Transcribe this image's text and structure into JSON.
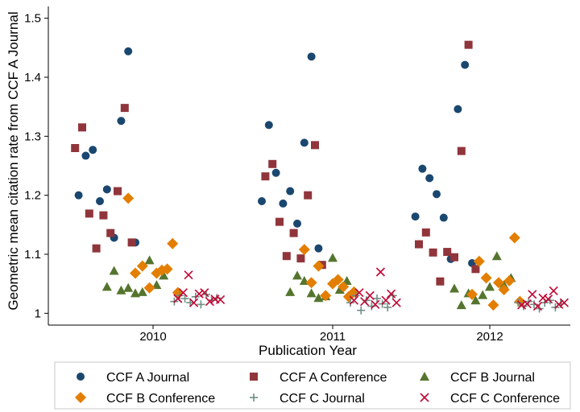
{
  "chart_data": {
    "type": "scatter",
    "title": "",
    "xlabel": "Publication Year",
    "ylabel": "Geometric mean citation rate from CCF A Journal",
    "x_categories": [
      "2010",
      "2011",
      "2012"
    ],
    "ylim": [
      0.98,
      1.52
    ],
    "yticks": [
      "1",
      "1.1",
      "1.2",
      "1.3",
      "1.4",
      "1.5"
    ],
    "grid": false,
    "legend_position": "bottom",
    "colors": {
      "ccf_a_journal": "#1a476f",
      "ccf_a_conference": "#90353b",
      "ccf_b_journal": "#55752f",
      "ccf_b_conference": "#e37e00",
      "ccf_c_journal": "#6e8e84",
      "ccf_c_conference": "#c10534"
    },
    "series": [
      {
        "name": "CCF A Journal",
        "key": "ccf_a_journal",
        "marker": "circle",
        "points": [
          {
            "year": "2010",
            "offset": -0.42,
            "y": 1.2
          },
          {
            "year": "2010",
            "offset": -0.38,
            "y": 1.267
          },
          {
            "year": "2010",
            "offset": -0.34,
            "y": 1.277
          },
          {
            "year": "2010",
            "offset": -0.3,
            "y": 1.19
          },
          {
            "year": "2010",
            "offset": -0.26,
            "y": 1.21
          },
          {
            "year": "2010",
            "offset": -0.22,
            "y": 1.128
          },
          {
            "year": "2010",
            "offset": -0.18,
            "y": 1.326
          },
          {
            "year": "2010",
            "offset": -0.14,
            "y": 1.444
          },
          {
            "year": "2010",
            "offset": -0.1,
            "y": 1.12
          },
          {
            "year": "2011",
            "offset": -0.4,
            "y": 1.19
          },
          {
            "year": "2011",
            "offset": -0.36,
            "y": 1.319
          },
          {
            "year": "2011",
            "offset": -0.32,
            "y": 1.238
          },
          {
            "year": "2011",
            "offset": -0.28,
            "y": 1.186
          },
          {
            "year": "2011",
            "offset": -0.24,
            "y": 1.207
          },
          {
            "year": "2011",
            "offset": -0.2,
            "y": 1.152
          },
          {
            "year": "2011",
            "offset": -0.16,
            "y": 1.289
          },
          {
            "year": "2011",
            "offset": -0.12,
            "y": 1.435
          },
          {
            "year": "2011",
            "offset": -0.08,
            "y": 1.11
          },
          {
            "year": "2012",
            "offset": -0.42,
            "y": 1.164
          },
          {
            "year": "2012",
            "offset": -0.38,
            "y": 1.245
          },
          {
            "year": "2012",
            "offset": -0.34,
            "y": 1.229
          },
          {
            "year": "2012",
            "offset": -0.3,
            "y": 1.202
          },
          {
            "year": "2012",
            "offset": -0.26,
            "y": 1.162
          },
          {
            "year": "2012",
            "offset": -0.22,
            "y": 1.092
          },
          {
            "year": "2012",
            "offset": -0.18,
            "y": 1.346
          },
          {
            "year": "2012",
            "offset": -0.14,
            "y": 1.421
          },
          {
            "year": "2012",
            "offset": -0.1,
            "y": 1.085
          }
        ]
      },
      {
        "name": "CCF A Conference",
        "key": "ccf_a_conference",
        "marker": "square",
        "points": [
          {
            "year": "2010",
            "offset": -0.44,
            "y": 1.28
          },
          {
            "year": "2010",
            "offset": -0.4,
            "y": 1.315
          },
          {
            "year": "2010",
            "offset": -0.36,
            "y": 1.169
          },
          {
            "year": "2010",
            "offset": -0.32,
            "y": 1.11
          },
          {
            "year": "2010",
            "offset": -0.28,
            "y": 1.166
          },
          {
            "year": "2010",
            "offset": -0.24,
            "y": 1.136
          },
          {
            "year": "2010",
            "offset": -0.2,
            "y": 1.207
          },
          {
            "year": "2010",
            "offset": -0.16,
            "y": 1.348
          },
          {
            "year": "2010",
            "offset": -0.12,
            "y": 1.12
          },
          {
            "year": "2011",
            "offset": -0.38,
            "y": 1.232
          },
          {
            "year": "2011",
            "offset": -0.34,
            "y": 1.253
          },
          {
            "year": "2011",
            "offset": -0.3,
            "y": 1.155
          },
          {
            "year": "2011",
            "offset": -0.26,
            "y": 1.097
          },
          {
            "year": "2011",
            "offset": -0.22,
            "y": 1.136
          },
          {
            "year": "2011",
            "offset": -0.18,
            "y": 1.093
          },
          {
            "year": "2011",
            "offset": -0.14,
            "y": 1.2
          },
          {
            "year": "2011",
            "offset": -0.1,
            "y": 1.285
          },
          {
            "year": "2011",
            "offset": -0.06,
            "y": 1.082
          },
          {
            "year": "2012",
            "offset": -0.4,
            "y": 1.117
          },
          {
            "year": "2012",
            "offset": -0.36,
            "y": 1.137
          },
          {
            "year": "2012",
            "offset": -0.32,
            "y": 1.103
          },
          {
            "year": "2012",
            "offset": -0.28,
            "y": 1.054
          },
          {
            "year": "2012",
            "offset": -0.24,
            "y": 1.104
          },
          {
            "year": "2012",
            "offset": -0.2,
            "y": 1.095
          },
          {
            "year": "2012",
            "offset": -0.16,
            "y": 1.275
          },
          {
            "year": "2012",
            "offset": -0.12,
            "y": 1.455
          },
          {
            "year": "2012",
            "offset": -0.08,
            "y": 1.075
          }
        ]
      },
      {
        "name": "CCF B Journal",
        "key": "ccf_b_journal",
        "marker": "triangle",
        "points": [
          {
            "year": "2010",
            "offset": -0.26,
            "y": 1.045
          },
          {
            "year": "2010",
            "offset": -0.22,
            "y": 1.072
          },
          {
            "year": "2010",
            "offset": -0.18,
            "y": 1.039
          },
          {
            "year": "2010",
            "offset": -0.14,
            "y": 1.043
          },
          {
            "year": "2010",
            "offset": -0.1,
            "y": 1.034
          },
          {
            "year": "2010",
            "offset": -0.06,
            "y": 1.036
          },
          {
            "year": "2010",
            "offset": -0.02,
            "y": 1.09
          },
          {
            "year": "2010",
            "offset": 0.02,
            "y": 1.048
          },
          {
            "year": "2010",
            "offset": 0.06,
            "y": 1.064
          },
          {
            "year": "2011",
            "offset": -0.24,
            "y": 1.036
          },
          {
            "year": "2011",
            "offset": -0.2,
            "y": 1.064
          },
          {
            "year": "2011",
            "offset": -0.16,
            "y": 1.055
          },
          {
            "year": "2011",
            "offset": -0.12,
            "y": 1.034
          },
          {
            "year": "2011",
            "offset": -0.08,
            "y": 1.026
          },
          {
            "year": "2011",
            "offset": -0.04,
            "y": 1.029
          },
          {
            "year": "2011",
            "offset": 0.0,
            "y": 1.094
          },
          {
            "year": "2011",
            "offset": 0.04,
            "y": 1.04
          },
          {
            "year": "2011",
            "offset": 0.08,
            "y": 1.055
          },
          {
            "year": "2012",
            "offset": -0.2,
            "y": 1.042
          },
          {
            "year": "2012",
            "offset": -0.16,
            "y": 1.014
          },
          {
            "year": "2012",
            "offset": -0.12,
            "y": 1.034
          },
          {
            "year": "2012",
            "offset": -0.08,
            "y": 1.022
          },
          {
            "year": "2012",
            "offset": -0.04,
            "y": 1.031
          },
          {
            "year": "2012",
            "offset": 0.0,
            "y": 1.045
          },
          {
            "year": "2012",
            "offset": 0.04,
            "y": 1.097
          },
          {
            "year": "2012",
            "offset": 0.08,
            "y": 1.048
          },
          {
            "year": "2012",
            "offset": 0.12,
            "y": 1.06
          }
        ]
      },
      {
        "name": "CCF B Conference",
        "key": "ccf_b_conference",
        "marker": "diamond",
        "points": [
          {
            "year": "2010",
            "offset": -0.14,
            "y": 1.195
          },
          {
            "year": "2010",
            "offset": -0.1,
            "y": 1.068
          },
          {
            "year": "2010",
            "offset": -0.06,
            "y": 1.08
          },
          {
            "year": "2010",
            "offset": -0.02,
            "y": 1.043
          },
          {
            "year": "2010",
            "offset": 0.02,
            "y": 1.068
          },
          {
            "year": "2010",
            "offset": 0.05,
            "y": 1.073
          },
          {
            "year": "2010",
            "offset": 0.08,
            "y": 1.075
          },
          {
            "year": "2010",
            "offset": 0.11,
            "y": 1.118
          },
          {
            "year": "2010",
            "offset": 0.14,
            "y": 1.035
          },
          {
            "year": "2011",
            "offset": -0.16,
            "y": 1.108
          },
          {
            "year": "2011",
            "offset": -0.12,
            "y": 1.052
          },
          {
            "year": "2011",
            "offset": -0.08,
            "y": 1.08
          },
          {
            "year": "2011",
            "offset": -0.04,
            "y": 1.03
          },
          {
            "year": "2011",
            "offset": 0.0,
            "y": 1.05
          },
          {
            "year": "2011",
            "offset": 0.03,
            "y": 1.057
          },
          {
            "year": "2011",
            "offset": 0.06,
            "y": 1.045
          },
          {
            "year": "2011",
            "offset": 0.09,
            "y": 1.028
          },
          {
            "year": "2011",
            "offset": 0.12,
            "y": 1.036
          },
          {
            "year": "2012",
            "offset": -0.1,
            "y": 1.032
          },
          {
            "year": "2012",
            "offset": -0.06,
            "y": 1.088
          },
          {
            "year": "2012",
            "offset": -0.02,
            "y": 1.06
          },
          {
            "year": "2012",
            "offset": 0.02,
            "y": 1.014
          },
          {
            "year": "2012",
            "offset": 0.05,
            "y": 1.052
          },
          {
            "year": "2012",
            "offset": 0.08,
            "y": 1.04
          },
          {
            "year": "2012",
            "offset": 0.11,
            "y": 1.055
          },
          {
            "year": "2012",
            "offset": 0.14,
            "y": 1.128
          },
          {
            "year": "2012",
            "offset": 0.17,
            "y": 1.02
          }
        ]
      },
      {
        "name": "CCF C Journal",
        "key": "ccf_c_journal",
        "marker": "plus",
        "points": [
          {
            "year": "2010",
            "offset": 0.12,
            "y": 1.02
          },
          {
            "year": "2010",
            "offset": 0.15,
            "y": 1.03
          },
          {
            "year": "2010",
            "offset": 0.18,
            "y": 1.025
          },
          {
            "year": "2010",
            "offset": 0.21,
            "y": 1.018
          },
          {
            "year": "2010",
            "offset": 0.24,
            "y": 1.028
          },
          {
            "year": "2010",
            "offset": 0.27,
            "y": 1.015
          },
          {
            "year": "2010",
            "offset": 0.3,
            "y": 1.032
          },
          {
            "year": "2010",
            "offset": 0.33,
            "y": 1.022
          },
          {
            "year": "2010",
            "offset": 0.36,
            "y": 1.026
          },
          {
            "year": "2011",
            "offset": 0.1,
            "y": 1.018
          },
          {
            "year": "2011",
            "offset": 0.13,
            "y": 1.03
          },
          {
            "year": "2011",
            "offset": 0.16,
            "y": 1.005
          },
          {
            "year": "2011",
            "offset": 0.19,
            "y": 1.022
          },
          {
            "year": "2011",
            "offset": 0.22,
            "y": 1.012
          },
          {
            "year": "2011",
            "offset": 0.25,
            "y": 1.025
          },
          {
            "year": "2011",
            "offset": 0.28,
            "y": 1.016
          },
          {
            "year": "2011",
            "offset": 0.31,
            "y": 1.01
          },
          {
            "year": "2011",
            "offset": 0.34,
            "y": 1.03
          },
          {
            "year": "2012",
            "offset": 0.16,
            "y": 1.018
          },
          {
            "year": "2012",
            "offset": 0.19,
            "y": 1.012
          },
          {
            "year": "2012",
            "offset": 0.22,
            "y": 1.02
          },
          {
            "year": "2012",
            "offset": 0.25,
            "y": 1.015
          },
          {
            "year": "2012",
            "offset": 0.28,
            "y": 1.008
          },
          {
            "year": "2012",
            "offset": 0.31,
            "y": 1.018
          },
          {
            "year": "2012",
            "offset": 0.34,
            "y": 1.022
          },
          {
            "year": "2012",
            "offset": 0.37,
            "y": 1.01
          },
          {
            "year": "2012",
            "offset": 0.4,
            "y": 1.016
          }
        ]
      },
      {
        "name": "CCF C Conference",
        "key": "ccf_c_conference",
        "marker": "x",
        "points": [
          {
            "year": "2010",
            "offset": 0.14,
            "y": 1.025
          },
          {
            "year": "2010",
            "offset": 0.17,
            "y": 1.035
          },
          {
            "year": "2010",
            "offset": 0.2,
            "y": 1.065
          },
          {
            "year": "2010",
            "offset": 0.23,
            "y": 1.018
          },
          {
            "year": "2010",
            "offset": 0.26,
            "y": 1.033
          },
          {
            "year": "2010",
            "offset": 0.29,
            "y": 1.035
          },
          {
            "year": "2010",
            "offset": 0.32,
            "y": 1.02
          },
          {
            "year": "2010",
            "offset": 0.35,
            "y": 1.024
          },
          {
            "year": "2010",
            "offset": 0.38,
            "y": 1.023
          },
          {
            "year": "2011",
            "offset": 0.12,
            "y": 1.022
          },
          {
            "year": "2011",
            "offset": 0.15,
            "y": 1.035
          },
          {
            "year": "2011",
            "offset": 0.18,
            "y": 1.02
          },
          {
            "year": "2011",
            "offset": 0.21,
            "y": 1.03
          },
          {
            "year": "2011",
            "offset": 0.24,
            "y": 1.015
          },
          {
            "year": "2011",
            "offset": 0.27,
            "y": 1.07
          },
          {
            "year": "2011",
            "offset": 0.3,
            "y": 1.022
          },
          {
            "year": "2011",
            "offset": 0.33,
            "y": 1.033
          },
          {
            "year": "2011",
            "offset": 0.36,
            "y": 1.018
          },
          {
            "year": "2012",
            "offset": 0.18,
            "y": 1.014
          },
          {
            "year": "2012",
            "offset": 0.21,
            "y": 1.016
          },
          {
            "year": "2012",
            "offset": 0.24,
            "y": 1.032
          },
          {
            "year": "2012",
            "offset": 0.27,
            "y": 1.012
          },
          {
            "year": "2012",
            "offset": 0.3,
            "y": 1.026
          },
          {
            "year": "2012",
            "offset": 0.33,
            "y": 1.024
          },
          {
            "year": "2012",
            "offset": 0.36,
            "y": 1.038
          },
          {
            "year": "2012",
            "offset": 0.39,
            "y": 1.015
          },
          {
            "year": "2012",
            "offset": 0.42,
            "y": 1.018
          }
        ]
      }
    ]
  }
}
